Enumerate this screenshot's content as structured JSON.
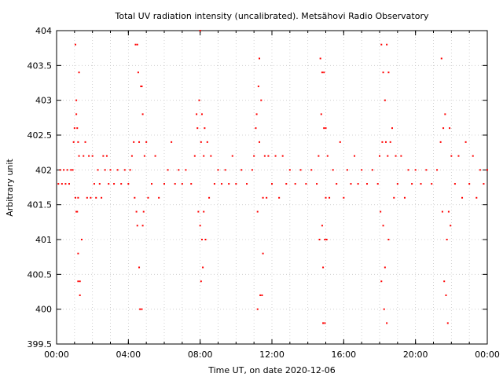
{
  "chart_data": {
    "type": "scatter",
    "title": "Total UV radiation intensity (uncalibrated). Metsähovi Radio Observatory",
    "xlabel": "Time UT, on date 2020-12-06",
    "ylabel": "Arbitrary unit",
    "x_unit": "hours UT",
    "xlim": [
      0,
      24
    ],
    "ylim": [
      399.5,
      404
    ],
    "x_ticks": [
      {
        "value": 0,
        "label": "00:00"
      },
      {
        "value": 4,
        "label": "04:00"
      },
      {
        "value": 8,
        "label": "08:00"
      },
      {
        "value": 12,
        "label": "12:00"
      },
      {
        "value": 16,
        "label": "16:00"
      },
      {
        "value": 20,
        "label": "20:00"
      },
      {
        "value": 24,
        "label": "00:00"
      }
    ],
    "y_ticks": [
      {
        "value": 399.5,
        "label": "399.5"
      },
      {
        "value": 400,
        "label": "400"
      },
      {
        "value": 400.5,
        "label": "400.5"
      },
      {
        "value": 401,
        "label": "401"
      },
      {
        "value": 401.5,
        "label": "401.5"
      },
      {
        "value": 402,
        "label": "402"
      },
      {
        "value": 402.5,
        "label": "402.5"
      },
      {
        "value": 403,
        "label": "403"
      },
      {
        "value": 403.5,
        "label": "403.5"
      },
      {
        "value": 404,
        "label": "404"
      }
    ],
    "grid": true,
    "marker_color": "#ff0000",
    "series": [
      {
        "points": [
          [
            0.1,
            401.8
          ],
          [
            0.2,
            402.0
          ],
          [
            0.3,
            401.8
          ],
          [
            0.4,
            402.0
          ],
          [
            0.5,
            401.8
          ],
          [
            0.6,
            402.0
          ],
          [
            0.7,
            401.8
          ],
          [
            0.8,
            402.0
          ],
          [
            0.9,
            402.0
          ],
          [
            0.95,
            402.4
          ],
          [
            1.0,
            402.6
          ],
          [
            1.05,
            403.8
          ],
          [
            1.1,
            403.0
          ],
          [
            1.1,
            402.8
          ],
          [
            1.15,
            402.6
          ],
          [
            1.2,
            402.4
          ],
          [
            1.2,
            401.6
          ],
          [
            1.25,
            403.4
          ],
          [
            1.05,
            401.6
          ],
          [
            1.1,
            401.4
          ],
          [
            1.15,
            401.4
          ],
          [
            1.2,
            400.8
          ],
          [
            1.2,
            400.4
          ],
          [
            1.3,
            400.4
          ],
          [
            1.3,
            400.2
          ],
          [
            1.4,
            401.0
          ],
          [
            1.25,
            402.2
          ],
          [
            1.5,
            402.2
          ],
          [
            1.6,
            402.4
          ],
          [
            1.7,
            401.6
          ],
          [
            1.8,
            402.2
          ],
          [
            1.9,
            401.6
          ],
          [
            2.0,
            402.2
          ],
          [
            2.1,
            401.8
          ],
          [
            2.2,
            401.6
          ],
          [
            2.3,
            402.0
          ],
          [
            2.4,
            401.8
          ],
          [
            2.5,
            401.6
          ],
          [
            2.6,
            402.2
          ],
          [
            2.7,
            402.0
          ],
          [
            2.8,
            402.2
          ],
          [
            2.9,
            401.8
          ],
          [
            3.0,
            402.0
          ],
          [
            3.2,
            401.8
          ],
          [
            3.4,
            402.0
          ],
          [
            3.6,
            401.8
          ],
          [
            3.8,
            402.0
          ],
          [
            4.0,
            401.8
          ],
          [
            4.1,
            402.0
          ],
          [
            4.2,
            402.2
          ],
          [
            4.3,
            402.4
          ],
          [
            4.35,
            401.6
          ],
          [
            4.4,
            403.8
          ],
          [
            4.45,
            401.4
          ],
          [
            4.5,
            403.8
          ],
          [
            4.5,
            401.2
          ],
          [
            4.55,
            403.4
          ],
          [
            4.6,
            400.6
          ],
          [
            4.6,
            402.4
          ],
          [
            4.65,
            400.0
          ],
          [
            4.7,
            403.2
          ],
          [
            4.75,
            403.2
          ],
          [
            4.75,
            400.0
          ],
          [
            4.8,
            401.2
          ],
          [
            4.8,
            402.8
          ],
          [
            4.85,
            401.4
          ],
          [
            4.9,
            402.2
          ],
          [
            5.0,
            402.4
          ],
          [
            5.1,
            401.6
          ],
          [
            5.3,
            401.8
          ],
          [
            5.5,
            402.2
          ],
          [
            5.7,
            401.6
          ],
          [
            6.0,
            401.8
          ],
          [
            6.2,
            402.0
          ],
          [
            6.4,
            402.4
          ],
          [
            6.6,
            401.8
          ],
          [
            6.8,
            402.0
          ],
          [
            7.0,
            401.8
          ],
          [
            7.2,
            402.0
          ],
          [
            7.5,
            401.8
          ],
          [
            7.7,
            402.2
          ],
          [
            7.8,
            402.8
          ],
          [
            7.85,
            402.6
          ],
          [
            7.9,
            401.4
          ],
          [
            7.95,
            403.0
          ],
          [
            8.0,
            404.0
          ],
          [
            8.0,
            401.2
          ],
          [
            8.05,
            402.4
          ],
          [
            8.05,
            400.4
          ],
          [
            8.1,
            402.8
          ],
          [
            8.1,
            401.0
          ],
          [
            8.15,
            400.6
          ],
          [
            8.2,
            401.4
          ],
          [
            8.2,
            402.2
          ],
          [
            8.25,
            402.6
          ],
          [
            8.3,
            401.0
          ],
          [
            8.4,
            402.4
          ],
          [
            8.5,
            401.6
          ],
          [
            8.6,
            402.2
          ],
          [
            8.8,
            401.8
          ],
          [
            9.0,
            402.0
          ],
          [
            9.2,
            401.8
          ],
          [
            9.4,
            402.0
          ],
          [
            9.6,
            401.8
          ],
          [
            9.8,
            402.2
          ],
          [
            10.0,
            401.8
          ],
          [
            10.3,
            402.0
          ],
          [
            10.6,
            401.8
          ],
          [
            10.9,
            402.0
          ],
          [
            11.0,
            402.2
          ],
          [
            11.1,
            402.6
          ],
          [
            11.15,
            402.8
          ],
          [
            11.2,
            400.0
          ],
          [
            11.2,
            401.4
          ],
          [
            11.25,
            403.2
          ],
          [
            11.3,
            403.6
          ],
          [
            11.3,
            402.4
          ],
          [
            11.35,
            400.2
          ],
          [
            11.4,
            403.0
          ],
          [
            11.45,
            400.2
          ],
          [
            11.5,
            400.8
          ],
          [
            11.5,
            401.6
          ],
          [
            11.6,
            402.2
          ],
          [
            11.7,
            401.6
          ],
          [
            11.8,
            402.2
          ],
          [
            12.0,
            401.8
          ],
          [
            12.2,
            402.2
          ],
          [
            12.4,
            401.6
          ],
          [
            12.6,
            402.2
          ],
          [
            12.8,
            401.8
          ],
          [
            13.0,
            402.0
          ],
          [
            13.3,
            401.8
          ],
          [
            13.6,
            402.0
          ],
          [
            13.9,
            401.8
          ],
          [
            14.2,
            402.0
          ],
          [
            14.5,
            401.8
          ],
          [
            14.6,
            402.2
          ],
          [
            14.65,
            401.0
          ],
          [
            14.7,
            403.6
          ],
          [
            14.75,
            402.8
          ],
          [
            14.8,
            403.4
          ],
          [
            14.8,
            401.2
          ],
          [
            14.85,
            399.8
          ],
          [
            14.85,
            400.6
          ],
          [
            14.9,
            403.4
          ],
          [
            14.9,
            402.6
          ],
          [
            14.95,
            399.8
          ],
          [
            14.95,
            401.0
          ],
          [
            15.0,
            402.6
          ],
          [
            15.0,
            401.6
          ],
          [
            15.05,
            401.0
          ],
          [
            15.1,
            402.2
          ],
          [
            15.2,
            401.6
          ],
          [
            15.4,
            402.0
          ],
          [
            15.6,
            401.8
          ],
          [
            15.8,
            402.4
          ],
          [
            16.0,
            401.6
          ],
          [
            16.2,
            402.0
          ],
          [
            16.4,
            401.8
          ],
          [
            16.6,
            402.2
          ],
          [
            16.8,
            401.8
          ],
          [
            17.0,
            402.0
          ],
          [
            17.3,
            401.8
          ],
          [
            17.6,
            402.0
          ],
          [
            17.9,
            401.8
          ],
          [
            18.0,
            402.2
          ],
          [
            18.05,
            401.4
          ],
          [
            18.1,
            403.8
          ],
          [
            18.1,
            400.4
          ],
          [
            18.15,
            402.4
          ],
          [
            18.2,
            403.4
          ],
          [
            18.2,
            401.2
          ],
          [
            18.25,
            400.0
          ],
          [
            18.3,
            403.0
          ],
          [
            18.3,
            400.6
          ],
          [
            18.35,
            402.4
          ],
          [
            18.4,
            403.8
          ],
          [
            18.4,
            399.8
          ],
          [
            18.45,
            402.2
          ],
          [
            18.5,
            403.4
          ],
          [
            18.5,
            401.0
          ],
          [
            18.6,
            402.4
          ],
          [
            18.7,
            402.6
          ],
          [
            18.8,
            401.6
          ],
          [
            18.9,
            402.2
          ],
          [
            19.0,
            401.8
          ],
          [
            19.2,
            402.2
          ],
          [
            19.4,
            401.6
          ],
          [
            19.6,
            402.0
          ],
          [
            19.8,
            401.8
          ],
          [
            20.0,
            402.0
          ],
          [
            20.3,
            401.8
          ],
          [
            20.6,
            402.0
          ],
          [
            20.9,
            401.8
          ],
          [
            21.2,
            402.0
          ],
          [
            21.4,
            402.4
          ],
          [
            21.45,
            403.6
          ],
          [
            21.5,
            401.4
          ],
          [
            21.55,
            402.6
          ],
          [
            21.6,
            400.4
          ],
          [
            21.65,
            402.8
          ],
          [
            21.7,
            400.2
          ],
          [
            21.75,
            401.0
          ],
          [
            21.8,
            399.8
          ],
          [
            21.85,
            401.4
          ],
          [
            21.9,
            402.6
          ],
          [
            21.95,
            401.2
          ],
          [
            22.0,
            402.2
          ],
          [
            22.2,
            401.8
          ],
          [
            22.4,
            402.2
          ],
          [
            22.6,
            401.6
          ],
          [
            22.8,
            402.4
          ],
          [
            23.0,
            401.8
          ],
          [
            23.2,
            402.2
          ],
          [
            23.4,
            401.6
          ],
          [
            23.6,
            402.0
          ],
          [
            23.8,
            401.8
          ],
          [
            24.0,
            402.0
          ]
        ]
      }
    ]
  }
}
